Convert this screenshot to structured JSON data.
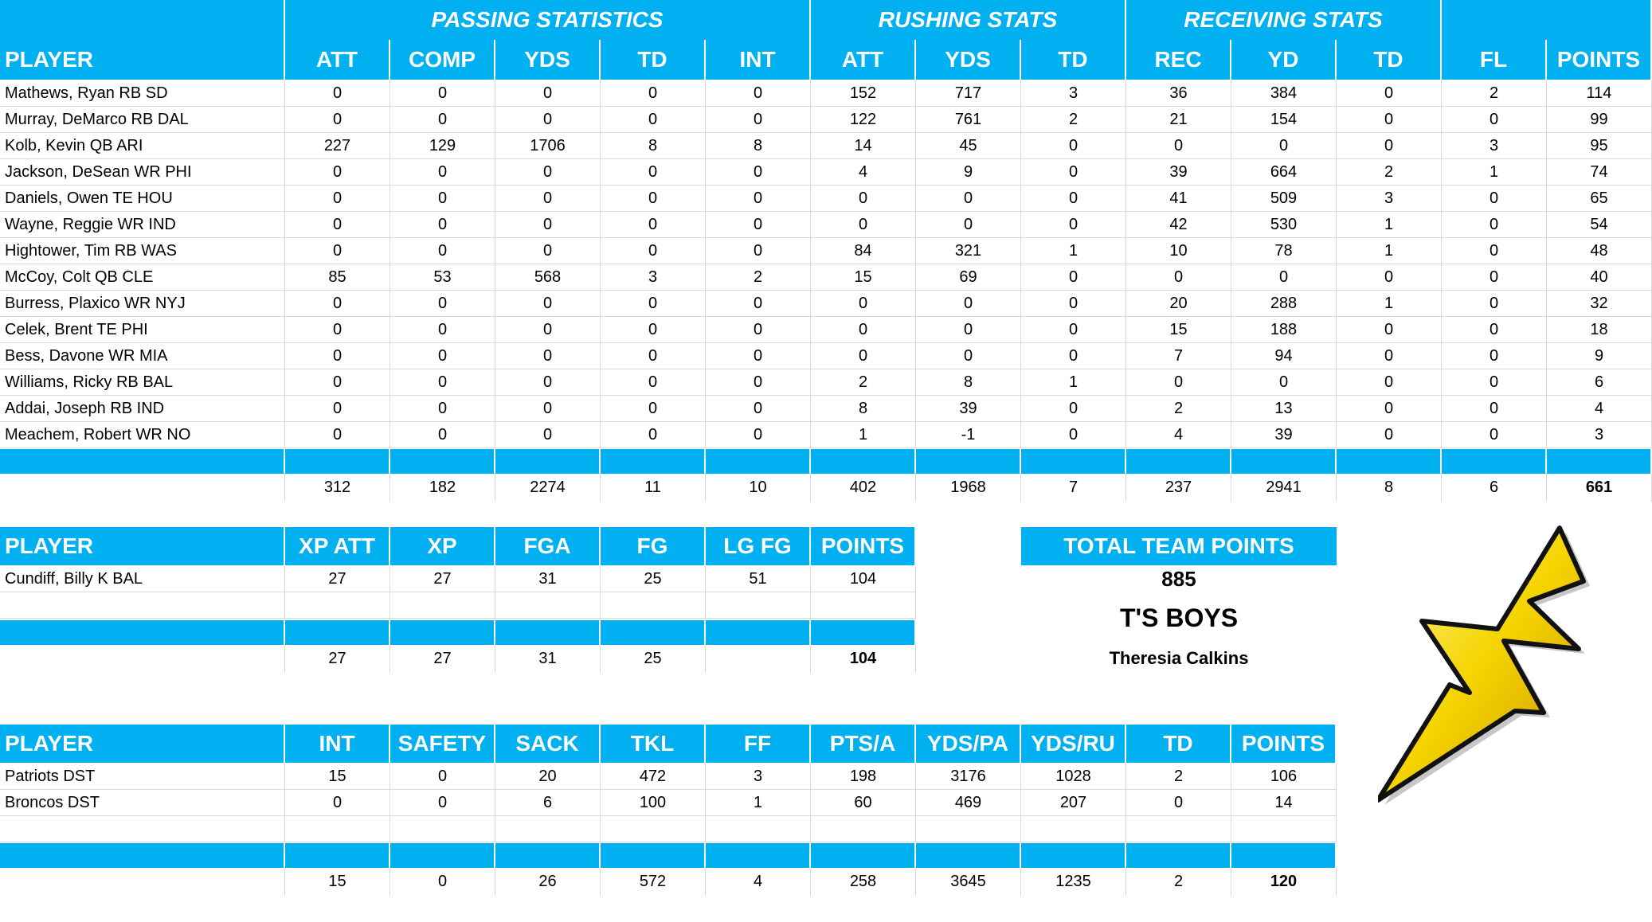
{
  "offense": {
    "groups": [
      "PASSING STATISTICS",
      "RUSHING STATS",
      "RECEIVING STATS"
    ],
    "columns": [
      "PLAYER",
      "ATT",
      "COMP",
      "YDS",
      "TD",
      "INT",
      "ATT",
      "YDS",
      "TD",
      "REC",
      "YD",
      "TD",
      "FL",
      "POINTS"
    ],
    "rows": [
      [
        "Mathews, Ryan RB SD",
        "0",
        "0",
        "0",
        "0",
        "0",
        "152",
        "717",
        "3",
        "36",
        "384",
        "0",
        "2",
        "114"
      ],
      [
        "Murray, DeMarco RB DAL",
        "0",
        "0",
        "0",
        "0",
        "0",
        "122",
        "761",
        "2",
        "21",
        "154",
        "0",
        "0",
        "99"
      ],
      [
        "Kolb, Kevin QB ARI",
        "227",
        "129",
        "1706",
        "8",
        "8",
        "14",
        "45",
        "0",
        "0",
        "0",
        "0",
        "3",
        "95"
      ],
      [
        "Jackson, DeSean WR PHI",
        "0",
        "0",
        "0",
        "0",
        "0",
        "4",
        "9",
        "0",
        "39",
        "664",
        "2",
        "1",
        "74"
      ],
      [
        "Daniels, Owen TE HOU",
        "0",
        "0",
        "0",
        "0",
        "0",
        "0",
        "0",
        "0",
        "41",
        "509",
        "3",
        "0",
        "65"
      ],
      [
        "Wayne, Reggie WR IND",
        "0",
        "0",
        "0",
        "0",
        "0",
        "0",
        "0",
        "0",
        "42",
        "530",
        "1",
        "0",
        "54"
      ],
      [
        "Hightower, Tim RB WAS",
        "0",
        "0",
        "0",
        "0",
        "0",
        "84",
        "321",
        "1",
        "10",
        "78",
        "1",
        "0",
        "48"
      ],
      [
        "McCoy, Colt QB CLE",
        "85",
        "53",
        "568",
        "3",
        "2",
        "15",
        "69",
        "0",
        "0",
        "0",
        "0",
        "0",
        "40"
      ],
      [
        "Burress, Plaxico WR NYJ",
        "0",
        "0",
        "0",
        "0",
        "0",
        "0",
        "0",
        "0",
        "20",
        "288",
        "1",
        "0",
        "32"
      ],
      [
        "Celek, Brent TE PHI",
        "0",
        "0",
        "0",
        "0",
        "0",
        "0",
        "0",
        "0",
        "15",
        "188",
        "0",
        "0",
        "18"
      ],
      [
        "Bess, Davone WR MIA",
        "0",
        "0",
        "0",
        "0",
        "0",
        "0",
        "0",
        "0",
        "7",
        "94",
        "0",
        "0",
        "9"
      ],
      [
        "Williams, Ricky RB BAL",
        "0",
        "0",
        "0",
        "0",
        "0",
        "2",
        "8",
        "1",
        "0",
        "0",
        "0",
        "0",
        "6"
      ],
      [
        "Addai, Joseph RB IND",
        "0",
        "0",
        "0",
        "0",
        "0",
        "8",
        "39",
        "0",
        "2",
        "13",
        "0",
        "0",
        "4"
      ],
      [
        "Meachem, Robert WR NO",
        "0",
        "0",
        "0",
        "0",
        "0",
        "1",
        "-1",
        "0",
        "4",
        "39",
        "0",
        "0",
        "3"
      ]
    ],
    "totals": [
      "",
      "312",
      "182",
      "2274",
      "11",
      "10",
      "402",
      "1968",
      "7",
      "237",
      "2941",
      "8",
      "6",
      "661"
    ]
  },
  "kicker": {
    "columns": [
      "PLAYER",
      "XP ATT",
      "XP",
      "FGA",
      "FG",
      "LG FG",
      "POINTS"
    ],
    "rows": [
      [
        "Cundiff, Billy K BAL",
        "27",
        "27",
        "31",
        "25",
        "51",
        "104"
      ],
      [
        "",
        "",
        "",
        "",
        "",
        "",
        ""
      ],
      [
        "",
        "",
        "",
        "",
        "",
        "",
        ""
      ]
    ],
    "totals": [
      "",
      "27",
      "27",
      "31",
      "25",
      "",
      "104"
    ]
  },
  "defense": {
    "columns": [
      "PLAYER",
      "INT",
      "SAFETY",
      "SACK",
      "TKL",
      "FF",
      "PTS/A",
      "YDS/PA",
      "YDS/RU",
      "TD",
      "POINTS"
    ],
    "rows": [
      [
        "Patriots DST",
        "15",
        "0",
        "20",
        "472",
        "3",
        "198",
        "3176",
        "1028",
        "2",
        "106"
      ],
      [
        "Broncos DST",
        "0",
        "0",
        "6",
        "100",
        "1",
        "60",
        "469",
        "207",
        "0",
        "14"
      ],
      [
        "",
        "",
        "",
        "",
        "",
        "",
        "",
        "",
        "",
        "",
        ""
      ]
    ],
    "totals": [
      "",
      "15",
      "0",
      "26",
      "572",
      "4",
      "258",
      "3645",
      "1235",
      "2",
      "120"
    ]
  },
  "team": {
    "total_label": "TOTAL TEAM POINTS",
    "total_points": "885",
    "name": "T'S BOYS",
    "owner": "Theresia Calkins"
  },
  "logo": {
    "icon": "lightning-bolt-icon",
    "fill": "#f5d400",
    "outline": "#111111"
  },
  "colors": {
    "header_blue": "#00b0f0",
    "header_text": "#ffffff"
  }
}
